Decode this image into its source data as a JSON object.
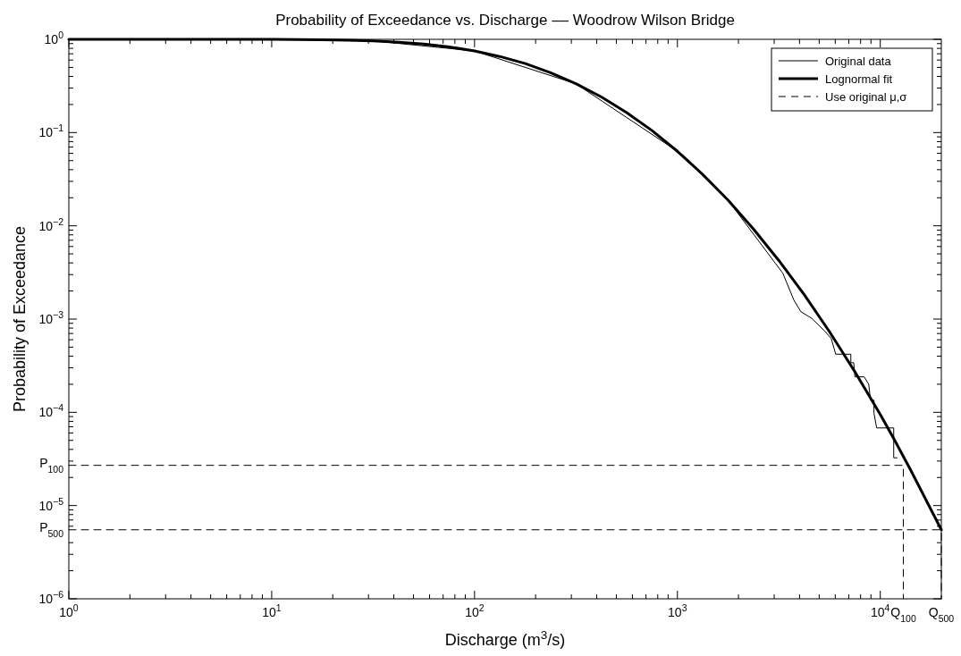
{
  "chart_data": {
    "type": "line",
    "title": "Probability of Exceedance vs. Discharge –– Woodrow Wilson Bridge",
    "xlabel": "Discharge (m$^{3}$/s)",
    "ylabel": "Probability of Exceedance",
    "log": "xy",
    "grid": false,
    "legend": "top right",
    "marker": "none",
    "xlim": [
      1,
      20000
    ],
    "ylim": [
      1e-06,
      1
    ],
    "xticks": [
      {
        "value": 1,
        "label": "10$^{0}$"
      },
      {
        "value": 2,
        "label": null
      },
      {
        "value": 3,
        "label": null
      },
      {
        "value": 4,
        "label": null
      },
      {
        "value": 5,
        "label": null
      },
      {
        "value": 6,
        "label": null
      },
      {
        "value": 7,
        "label": null
      },
      {
        "value": 8,
        "label": null
      },
      {
        "value": 9,
        "label": null
      },
      {
        "value": 10,
        "label": "10$^{1}$"
      },
      {
        "value": 20,
        "label": null
      },
      {
        "value": 30,
        "label": null
      },
      {
        "value": 40,
        "label": null
      },
      {
        "value": 50,
        "label": null
      },
      {
        "value": 60,
        "label": null
      },
      {
        "value": 70,
        "label": null
      },
      {
        "value": 80,
        "label": null
      },
      {
        "value": 90,
        "label": null
      },
      {
        "value": 100,
        "label": "10$^{2}$"
      },
      {
        "value": 200,
        "label": null
      },
      {
        "value": 300,
        "label": null
      },
      {
        "value": 400,
        "label": null
      },
      {
        "value": 500,
        "label": null
      },
      {
        "value": 600,
        "label": null
      },
      {
        "value": 700,
        "label": null
      },
      {
        "value": 800,
        "label": null
      },
      {
        "value": 900,
        "label": null
      },
      {
        "value": 1000,
        "label": "10$^{3}$"
      },
      {
        "value": 2000,
        "label": null
      },
      {
        "value": 3000,
        "label": null
      },
      {
        "value": 4000,
        "label": null
      },
      {
        "value": 5000,
        "label": null
      },
      {
        "value": 6000,
        "label": null
      },
      {
        "value": 7000,
        "label": null
      },
      {
        "value": 8000,
        "label": null
      },
      {
        "value": 9000,
        "label": null
      },
      {
        "value": 10000,
        "label": "10$^{4}$"
      }
    ],
    "annotations": [
      {
        "text": "Q$_{100}$",
        "x": 13000,
        "y": 1e-06
      },
      {
        "text": "Q$_{500}$",
        "x": 20000,
        "y": 1e-06
      },
      {
        "text": "P$_{100}$",
        "x": 1,
        "y": 2.7e-05
      },
      {
        "text": "P$_{500}$",
        "x": 1,
        "y": 5.5e-06
      }
    ],
    "yticks": [
      {
        "value": 1e-06,
        "label": "10$^{−6}$"
      },
      {
        "value": 2e-06,
        "label": null
      },
      {
        "value": 3e-06,
        "label": null
      },
      {
        "value": 4e-06,
        "label": null
      },
      {
        "value": 6e-06,
        "label": null
      },
      {
        "value": 7e-06,
        "label": null
      },
      {
        "value": 8e-06,
        "label": null
      },
      {
        "value": 9e-06,
        "label": null
      },
      {
        "value": 1e-05,
        "label": "10$^{−5}$"
      },
      {
        "value": 2e-05,
        "label": null
      },
      {
        "value": 3e-05,
        "label": null
      },
      {
        "value": 4e-05,
        "label": null
      },
      {
        "value": 5e-05,
        "label": null
      },
      {
        "value": 6e-05,
        "label": null
      },
      {
        "value": 7e-05,
        "label": null
      },
      {
        "value": 8e-05,
        "label": null
      },
      {
        "value": 9e-05,
        "label": null
      },
      {
        "value": 0.0001,
        "label": "10$^{−4}$"
      },
      {
        "value": 0.0002,
        "label": null
      },
      {
        "value": 0.0003,
        "label": null
      },
      {
        "value": 0.0004,
        "label": null
      },
      {
        "value": 0.0005,
        "label": null
      },
      {
        "value": 0.0006,
        "label": null
      },
      {
        "value": 0.0007,
        "label": null
      },
      {
        "value": 0.0008,
        "label": null
      },
      {
        "value": 0.0009,
        "label": null
      },
      {
        "value": 0.001,
        "label": "10$^{−3}$"
      },
      {
        "value": 0.002,
        "label": null
      },
      {
        "value": 0.003,
        "label": null
      },
      {
        "value": 0.004,
        "label": null
      },
      {
        "value": 0.005,
        "label": null
      },
      {
        "value": 0.006,
        "label": null
      },
      {
        "value": 0.007,
        "label": null
      },
      {
        "value": 0.008,
        "label": null
      },
      {
        "value": 0.009,
        "label": null
      },
      {
        "value": 0.01,
        "label": "10$^{−2}$"
      },
      {
        "value": 0.02,
        "label": null
      },
      {
        "value": 0.03,
        "label": null
      },
      {
        "value": 0.04,
        "label": null
      },
      {
        "value": 0.05,
        "label": null
      },
      {
        "value": 0.06,
        "label": null
      },
      {
        "value": 0.07,
        "label": null
      },
      {
        "value": 0.08,
        "label": null
      },
      {
        "value": 0.09,
        "label": null
      },
      {
        "value": 0.1,
        "label": "10$^{−1}$"
      },
      {
        "value": 0.2,
        "label": null
      },
      {
        "value": 0.3,
        "label": null
      },
      {
        "value": 0.4,
        "label": null
      },
      {
        "value": 0.5,
        "label": null
      },
      {
        "value": 0.6,
        "label": null
      },
      {
        "value": 0.7,
        "label": null
      },
      {
        "value": 0.8,
        "label": null
      },
      {
        "value": 0.9,
        "label": null
      },
      {
        "value": 1,
        "label": "10$^{0}$"
      }
    ],
    "series": [
      {
        "name": "Original data",
        "color": "#000000",
        "line_style": "solid",
        "x": [
          1,
          10,
          31.6,
          100,
          316,
          1000,
          1778,
          3310,
          3750,
          4060,
          4590,
          5300,
          5730,
          6030,
          7160,
          7160,
          7400,
          7500,
          8330,
          8770,
          8950,
          9310,
          9310,
          9600,
          11650,
          11650,
          12100
        ],
        "values": [
          1,
          0.998,
          0.962,
          0.75,
          0.334,
          0.063,
          0.0188,
          0.0031,
          0.0016,
          0.0012,
          0.00102,
          0.00075,
          0.00062,
          0.00042,
          0.00042,
          0.00034,
          0.00034,
          0.00024,
          0.00024,
          0.0002,
          0.000135,
          0.000135,
          9.8e-05,
          6.8e-05,
          6.8e-05,
          3.25e-05,
          3.25e-05
        ]
      },
      {
        "name": "Lognormal fit",
        "color": "#000000",
        "line_style": "solid",
        "x": [
          1,
          3.16,
          10,
          17.8,
          23.7,
          31.6,
          42.2,
          56.2,
          75,
          100,
          133,
          178,
          237,
          316,
          422,
          562,
          750,
          1000,
          1334,
          1778,
          2371,
          3162,
          4217,
          5623,
          7499,
          10000,
          11885,
          14125,
          20000
        ],
        "values": [
          1,
          1,
          0.998,
          0.99,
          0.98,
          0.962,
          0.933,
          0.89,
          0.829,
          0.75,
          0.655,
          0.549,
          0.439,
          0.334,
          0.241,
          0.164,
          0.105,
          0.063,
          0.0355,
          0.0188,
          0.00924,
          0.00425,
          0.00183,
          0.00073,
          0.000272,
          9.5e-05,
          4.83e-05,
          2.4e-05,
          5.5e-06
        ]
      },
      {
        "name": "Use original μ,σ",
        "color": "#000000",
        "line_style": "dashed",
        "x": [
          1,
          13000,
          13000
        ],
        "values": [
          2.7e-05,
          2.7e-05,
          1e-06
        ]
      },
      {
        "color": "#000000",
        "line_style": "dashed",
        "x": [
          1,
          20000,
          20000
        ],
        "values": [
          5.5e-06,
          5.5e-06,
          1e-06
        ]
      }
    ]
  }
}
